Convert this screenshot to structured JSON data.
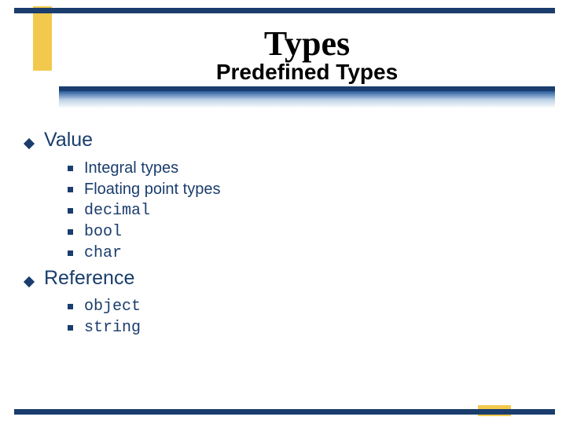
{
  "colors": {
    "rule": "#1a3d6d",
    "accent": "#f2c94c",
    "text": "#1a3d6d",
    "background": "#ffffff"
  },
  "header": {
    "title": "Types",
    "subtitle": "Predefined Types"
  },
  "sections": [
    {
      "label": "Value",
      "items": [
        {
          "text": "Integral types",
          "mono": false
        },
        {
          "text": "Floating point types",
          "mono": false
        },
        {
          "text": "decimal",
          "mono": true
        },
        {
          "text": "bool",
          "mono": true
        },
        {
          "text": "char",
          "mono": true
        }
      ]
    },
    {
      "label": "Reference",
      "items": [
        {
          "text": "object",
          "mono": true
        },
        {
          "text": "string",
          "mono": true
        }
      ]
    }
  ]
}
